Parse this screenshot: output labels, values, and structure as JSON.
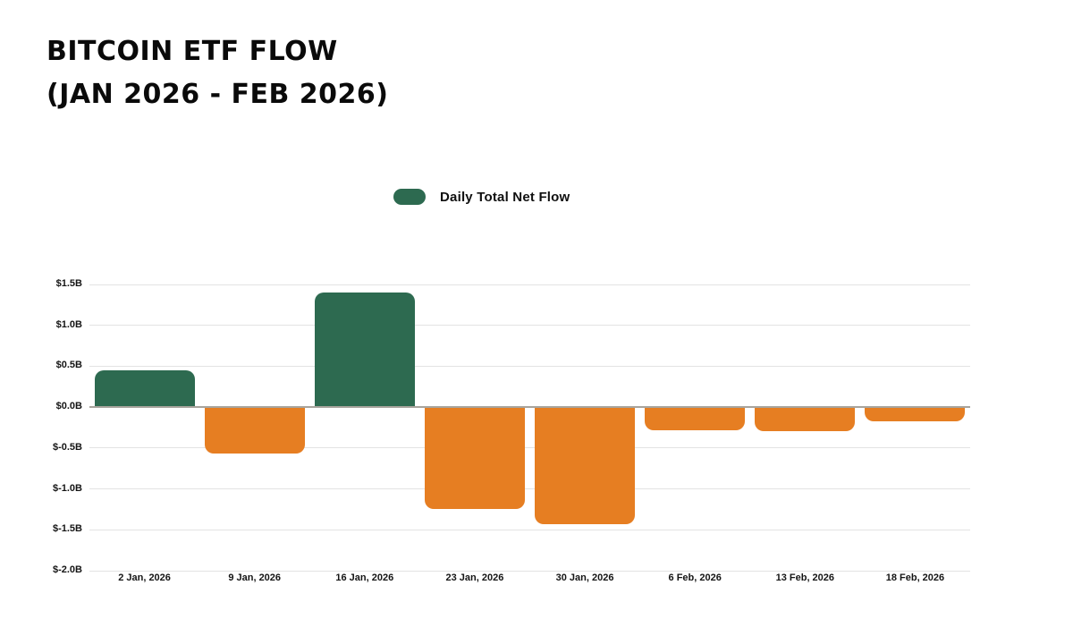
{
  "header": {
    "title_line1": "BITCOIN ETF FLOW",
    "title_line2": "(JAN 2026 - FEB 2026)"
  },
  "legend": {
    "label": "Daily Total Net Flow",
    "swatch_color": "#2D6A50"
  },
  "colors": {
    "positive": "#2D6A50",
    "negative": "#E67E22",
    "gridline": "#E3E3E3",
    "zero_line": "#A8A49D",
    "text": "#111111",
    "background": "#FFFFFF"
  },
  "chart_data": {
    "type": "bar",
    "title": "BITCOIN ETF FLOW (JAN 2026 - FEB 2026)",
    "categories": [
      "2 Jan, 2026",
      "9 Jan, 2026",
      "16 Jan, 2026",
      "23 Jan, 2026",
      "30 Jan, 2026",
      "6 Feb, 2026",
      "13 Feb, 2026",
      "18 Feb, 2026"
    ],
    "series": [
      {
        "name": "Daily Total Net Flow",
        "values": [
          0.45,
          -0.57,
          1.4,
          -1.24,
          -1.43,
          -0.28,
          -0.29,
          -0.17
        ]
      }
    ],
    "value_unit": "$B",
    "y_ticks": [
      {
        "label": "$1.5B",
        "value": 1.5
      },
      {
        "label": "$1.0B",
        "value": 1.0
      },
      {
        "label": "$0.5B",
        "value": 0.5
      },
      {
        "label": "$0.0B",
        "value": 0.0
      },
      {
        "label": "$-0.5B",
        "value": -0.5
      },
      {
        "label": "$-1.0B",
        "value": -1.0
      },
      {
        "label": "$-1.5B",
        "value": -1.5
      },
      {
        "label": "$-2.0B",
        "value": -2.0
      }
    ],
    "ylim": [
      -2.0,
      1.5
    ],
    "xlabel": "",
    "ylabel": "",
    "grid": true,
    "legend_position": "top-center",
    "positive_color": "#2D6A50",
    "negative_color": "#E67E22"
  }
}
